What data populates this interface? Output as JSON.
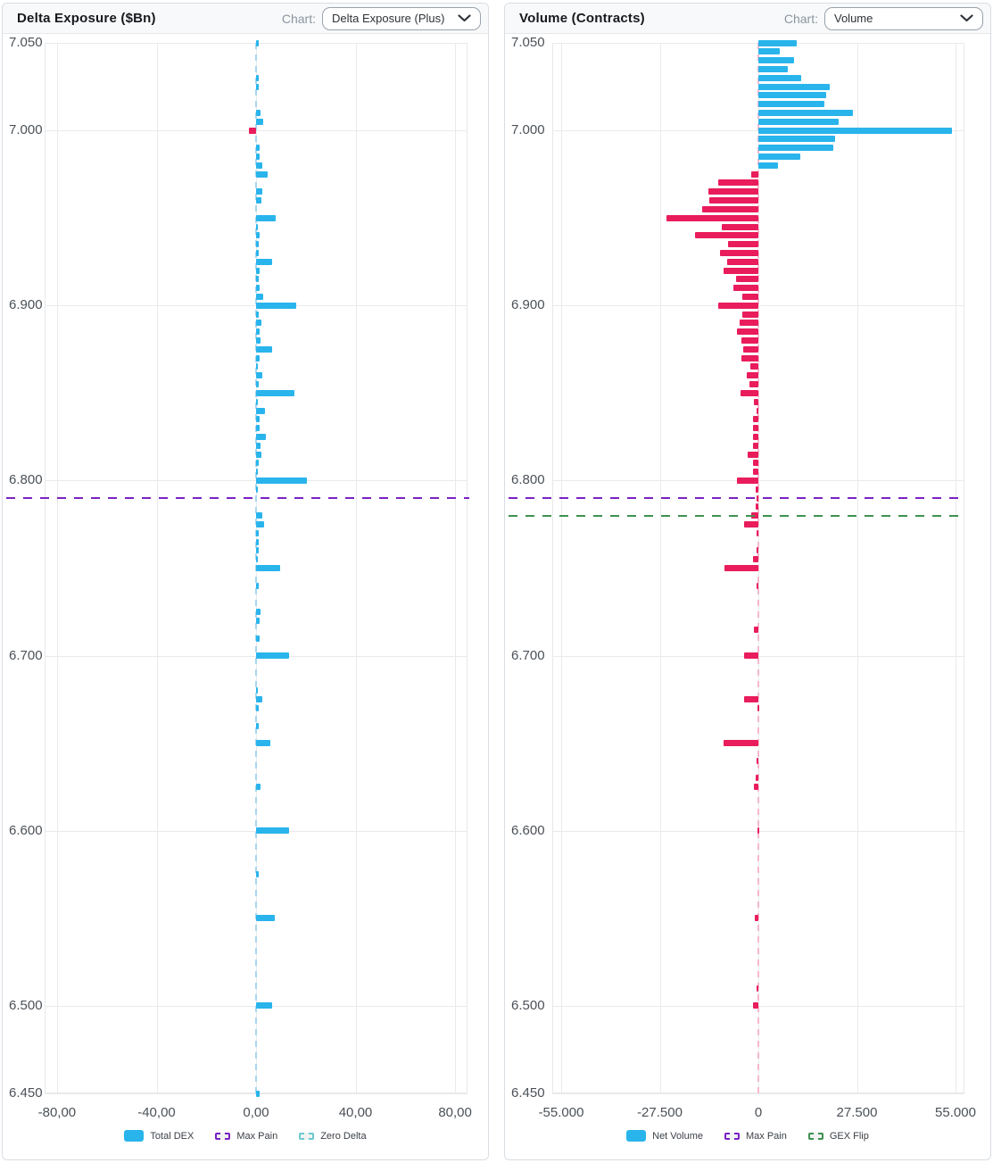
{
  "panels": [
    {
      "title": "Delta Exposure ($Bn)",
      "chart_label": "Chart:",
      "dropdown_value": "Delta Exposure (Plus)",
      "legend": [
        {
          "label": "Total DEX",
          "type": "solid",
          "color": "#29b4ec"
        },
        {
          "label": "Max Pain",
          "type": "dashed",
          "color": "#7a22c4"
        },
        {
          "label": "Zero Delta",
          "type": "dashed",
          "color": "#6cc9cf"
        }
      ]
    },
    {
      "title": "Volume (Contracts)",
      "chart_label": "Chart:",
      "dropdown_value": "Volume",
      "legend": [
        {
          "label": "Net Volume",
          "type": "solid",
          "color": "#29b4ec"
        },
        {
          "label": "Max Pain",
          "type": "dashed",
          "color": "#7a22c4"
        },
        {
          "label": "GEX Flip",
          "type": "dashed",
          "color": "#3e9150"
        }
      ]
    }
  ],
  "chart_data": [
    {
      "type": "bar",
      "orientation": "horizontal",
      "title": "Delta Exposure ($Bn)",
      "series_name": "Total DEX",
      "unit": "$Bn",
      "grid": true,
      "legend_position": "bottom",
      "ylim": [
        6.45,
        7.05
      ],
      "y_tick_values": [
        7.05,
        7.0,
        6.9,
        6.8,
        6.7,
        6.6,
        6.5,
        6.45
      ],
      "y_tick_labels": [
        "7.050",
        "7.000",
        "6.900",
        "6.800",
        "6.700",
        "6.600",
        "6.500",
        "6.450"
      ],
      "xlim": [
        -85,
        85
      ],
      "x_tick_values": [
        -80,
        -40,
        0,
        40,
        80
      ],
      "x_tick_labels": [
        "-80,00",
        "-40,00",
        "0,00",
        "40,00",
        "80,00"
      ],
      "positive_color": "#29b4ec",
      "negative_color": "#e91c5c",
      "overlays": {
        "max_pain_price": 6.79,
        "max_pain_color": "#7a22c4",
        "zero_axis_color": "#a7d7f0"
      },
      "bars": [
        [
          7.05,
          1.2
        ],
        [
          7.03,
          1.0
        ],
        [
          7.025,
          1.2
        ],
        [
          7.01,
          1.8
        ],
        [
          7.005,
          2.9
        ],
        [
          7.0,
          -2.9
        ],
        [
          6.99,
          1.4
        ],
        [
          6.985,
          1.4
        ],
        [
          6.98,
          2.4
        ],
        [
          6.975,
          4.6
        ],
        [
          6.965,
          2.4
        ],
        [
          6.96,
          2.1
        ],
        [
          6.95,
          7.9
        ],
        [
          6.945,
          0.7
        ],
        [
          6.94,
          1.4
        ],
        [
          6.935,
          1.2
        ],
        [
          6.93,
          1.2
        ],
        [
          6.925,
          6.5
        ],
        [
          6.92,
          1.4
        ],
        [
          6.915,
          1.2
        ],
        [
          6.91,
          1.4
        ],
        [
          6.905,
          3.0
        ],
        [
          6.9,
          16.1
        ],
        [
          6.895,
          1.2
        ],
        [
          6.89,
          2.1
        ],
        [
          6.885,
          1.4
        ],
        [
          6.88,
          1.8
        ],
        [
          6.875,
          6.5
        ],
        [
          6.87,
          1.4
        ],
        [
          6.865,
          0.6
        ],
        [
          6.86,
          2.6
        ],
        [
          6.855,
          1.2
        ],
        [
          6.85,
          15.3
        ],
        [
          6.845,
          0.6
        ],
        [
          6.84,
          3.6
        ],
        [
          6.835,
          1.4
        ],
        [
          6.83,
          1.4
        ],
        [
          6.825,
          3.8
        ],
        [
          6.82,
          1.8
        ],
        [
          6.815,
          2.1
        ],
        [
          6.81,
          1.0
        ],
        [
          6.805,
          0.6
        ],
        [
          6.8,
          20.3
        ],
        [
          6.795,
          0.5
        ],
        [
          6.78,
          2.4
        ],
        [
          6.775,
          3.3
        ],
        [
          6.77,
          1.0
        ],
        [
          6.765,
          1.0
        ],
        [
          6.76,
          1.0
        ],
        [
          6.755,
          0.5
        ],
        [
          6.75,
          9.8
        ],
        [
          6.74,
          1.2
        ],
        [
          6.725,
          1.7
        ],
        [
          6.72,
          1.4
        ],
        [
          6.71,
          1.4
        ],
        [
          6.7,
          13.1
        ],
        [
          6.68,
          0.7
        ],
        [
          6.675,
          2.6
        ],
        [
          6.67,
          1.2
        ],
        [
          6.66,
          1.0
        ],
        [
          6.65,
          5.7
        ],
        [
          6.625,
          1.7
        ],
        [
          6.6,
          13.1
        ],
        [
          6.575,
          1.2
        ],
        [
          6.55,
          7.5
        ],
        [
          6.5,
          6.5
        ],
        [
          6.45,
          1.4
        ]
      ]
    },
    {
      "type": "bar",
      "orientation": "horizontal",
      "title": "Volume (Contracts)",
      "series_name": "Net Volume",
      "unit": "contracts",
      "grid": true,
      "legend_position": "bottom",
      "ylim": [
        6.45,
        7.05
      ],
      "y_tick_values": [
        7.05,
        7.0,
        6.9,
        6.8,
        6.7,
        6.6,
        6.5,
        6.45
      ],
      "y_tick_labels": [
        "7.050",
        "7.000",
        "6.900",
        "6.800",
        "6.700",
        "6.600",
        "6.500",
        "6.450"
      ],
      "xlim": [
        -57500,
        57500
      ],
      "x_tick_values": [
        -55000,
        -27500,
        0,
        27500,
        55000
      ],
      "x_tick_labels": [
        "-55.000",
        "-27.500",
        "0",
        "27.500",
        "55.000"
      ],
      "positive_color": "#29b4ec",
      "negative_color": "#e91c5c",
      "overlays": {
        "max_pain_price": 6.79,
        "max_pain_color": "#7a22c4",
        "gex_flip_price": 6.78,
        "gex_flip_color": "#3e9150",
        "zero_axis_color": "#f7b9ce"
      },
      "bars": [
        [
          7.05,
          10700
        ],
        [
          7.045,
          6000
        ],
        [
          7.04,
          9900
        ],
        [
          7.035,
          8300
        ],
        [
          7.03,
          11900
        ],
        [
          7.025,
          20000
        ],
        [
          7.02,
          19000
        ],
        [
          7.015,
          18300
        ],
        [
          7.01,
          26300
        ],
        [
          7.005,
          22300
        ],
        [
          7.0,
          54000
        ],
        [
          6.995,
          21400
        ],
        [
          6.99,
          20900
        ],
        [
          6.985,
          11800
        ],
        [
          6.98,
          5400
        ],
        [
          6.975,
          -2100
        ],
        [
          6.97,
          -11100
        ],
        [
          6.965,
          -13900
        ],
        [
          6.96,
          -13600
        ],
        [
          6.955,
          -15700
        ],
        [
          6.95,
          -25700
        ],
        [
          6.945,
          -10300
        ],
        [
          6.94,
          -17600
        ],
        [
          6.935,
          -8500
        ],
        [
          6.93,
          -10600
        ],
        [
          6.925,
          -8700
        ],
        [
          6.92,
          -9700
        ],
        [
          6.915,
          -6300
        ],
        [
          6.91,
          -7000
        ],
        [
          6.905,
          -4500
        ],
        [
          6.9,
          -11100
        ],
        [
          6.895,
          -4600
        ],
        [
          6.89,
          -5200
        ],
        [
          6.885,
          -6000
        ],
        [
          6.88,
          -4800
        ],
        [
          6.875,
          -4200
        ],
        [
          6.87,
          -4800
        ],
        [
          6.865,
          -2300
        ],
        [
          6.86,
          -3300
        ],
        [
          6.855,
          -2600
        ],
        [
          6.85,
          -5000
        ],
        [
          6.845,
          -1300
        ],
        [
          6.84,
          -500
        ],
        [
          6.835,
          -1500
        ],
        [
          6.83,
          -1500
        ],
        [
          6.825,
          -1500
        ],
        [
          6.82,
          -1500
        ],
        [
          6.815,
          -2900
        ],
        [
          6.81,
          -1500
        ],
        [
          6.805,
          -1500
        ],
        [
          6.8,
          -6000
        ],
        [
          6.795,
          -800
        ],
        [
          6.79,
          -500
        ],
        [
          6.785,
          -800
        ],
        [
          6.78,
          -1900
        ],
        [
          6.775,
          -4000
        ],
        [
          6.77,
          -400
        ],
        [
          6.76,
          -500
        ],
        [
          6.755,
          -1500
        ],
        [
          6.75,
          -9500
        ],
        [
          6.74,
          -400
        ],
        [
          6.715,
          -1200
        ],
        [
          6.7,
          -3900
        ],
        [
          6.675,
          -4100
        ],
        [
          6.67,
          -300
        ],
        [
          6.65,
          -9700
        ],
        [
          6.64,
          -400
        ],
        [
          6.63,
          -700
        ],
        [
          6.625,
          -1200
        ],
        [
          6.6,
          -300
        ],
        [
          6.55,
          -1000
        ],
        [
          6.51,
          -500
        ],
        [
          6.5,
          -1400
        ]
      ]
    }
  ]
}
